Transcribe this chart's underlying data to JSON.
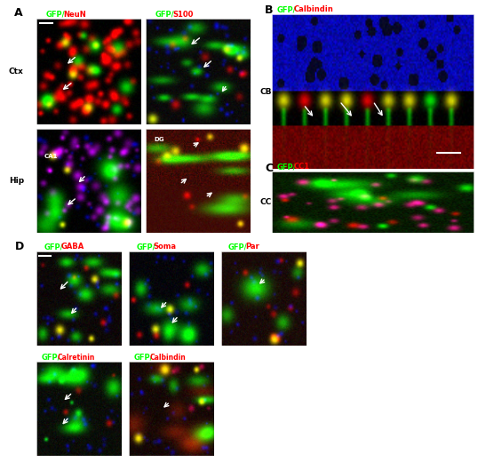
{
  "panel_A_label": "A",
  "panel_B_label": "B",
  "panel_C_label": "C",
  "panel_D_label": "D",
  "green": "#00ff00",
  "red": "#ff0000",
  "white": "#ffffff",
  "bg_white": "#ffffff",
  "font_size_panel": 9,
  "font_size_label": 6.5,
  "font_size_title": 6.0
}
